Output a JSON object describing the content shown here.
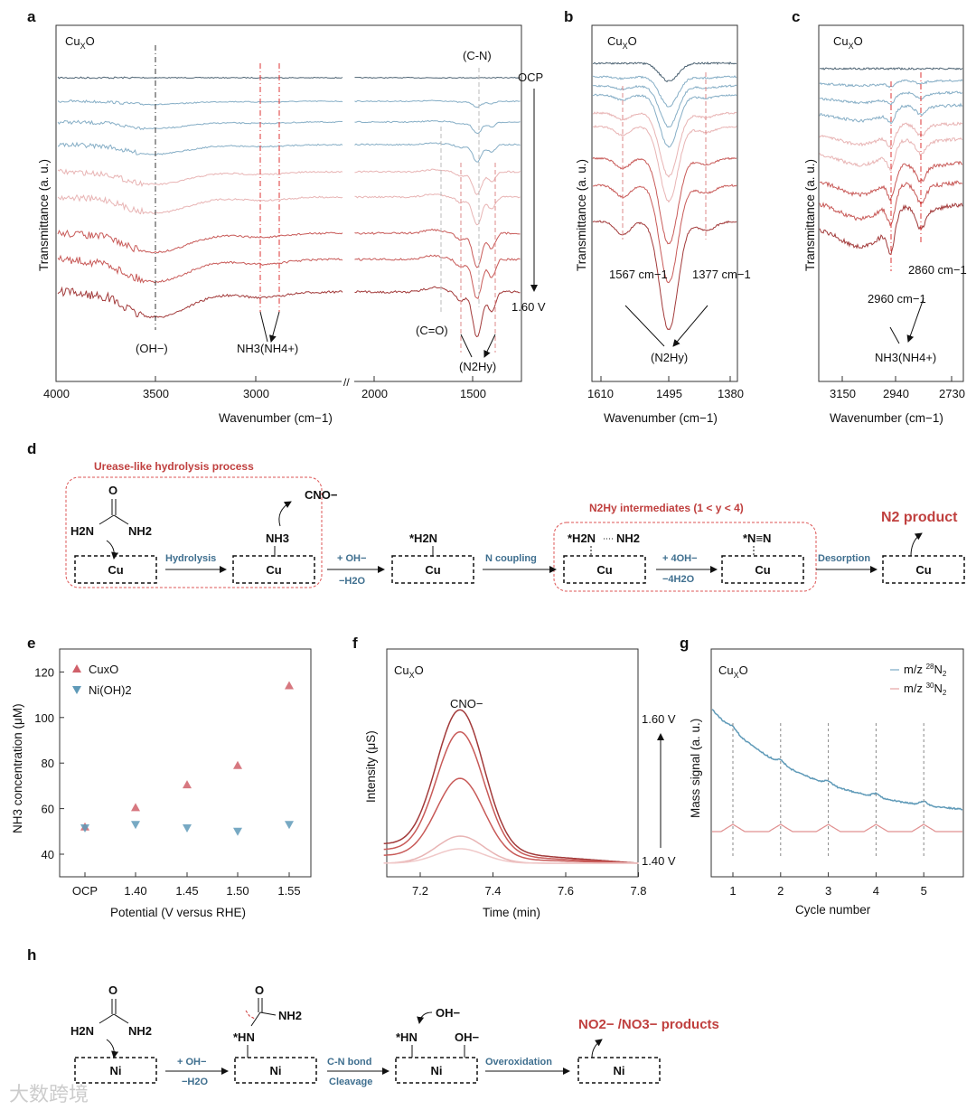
{
  "panel_letters": [
    "a",
    "b",
    "c",
    "d",
    "e",
    "f",
    "g",
    "h"
  ],
  "colors": {
    "ocp": "#4d6373",
    "blue": "#86aec6",
    "pink": "#e8b4b4",
    "red": "#c85a58",
    "darkred": "#a23a3a",
    "accent_red": "#c0403f",
    "arrow_blue": "#3f6f8f",
    "ni_marker": "#5f9ab8",
    "cu_marker": "#d0606a"
  },
  "chart_data": [
    {
      "panel": "a",
      "type": "line",
      "title": "CuxO",
      "xlabel": "Wavenumber (cm−1)",
      "ylabel": "Transmittance (a. u.)",
      "x_ticks": [
        "4000",
        "3500",
        "3000",
        "2000",
        "1500"
      ],
      "xlim": [
        4000,
        1300
      ],
      "axis_break": "2400–2100",
      "series_labels": {
        "top": "OCP",
        "bottom": "1.60 V"
      },
      "series_count": 9,
      "annotations": [
        "(OH−)",
        "NH3(NH4+)",
        "(C=O)",
        "(N2Hy)",
        "(C-N)"
      ]
    },
    {
      "panel": "b",
      "type": "line",
      "title": "CuxO",
      "xlabel": "Wavenumber (cm−1)",
      "ylabel": "Transmittance (a. u.)",
      "x_ticks": [
        "1610",
        "1495",
        "1380"
      ],
      "annotations": [
        "1567 cm−1",
        "1377 cm−1",
        "(N2Hy)"
      ]
    },
    {
      "panel": "c",
      "type": "line",
      "title": "CuxO",
      "xlabel": "Wavenumber (cm−1)",
      "ylabel": "Transmittance (a. u.)",
      "x_ticks": [
        "3150",
        "2940",
        "2730"
      ],
      "annotations": [
        "2960 cm−1",
        "2860 cm−1",
        "NH3(NH4+)"
      ]
    },
    {
      "panel": "e",
      "type": "scatter",
      "xlabel": "Potential (V versus RHE)",
      "ylabel": "NH3 concentration (μM)",
      "categories": [
        "OCP",
        "1.40",
        "1.45",
        "1.50",
        "1.55"
      ],
      "y_ticks": [
        "40",
        "60",
        "80",
        "100",
        "120"
      ],
      "ylim": [
        30,
        130
      ],
      "series": [
        {
          "name": "CuxO",
          "values": [
            52,
            60.5,
            70.5,
            79,
            114
          ]
        },
        {
          "name": "Ni(OH)2",
          "values": [
            51.5,
            53,
            51.5,
            50,
            53
          ]
        }
      ],
      "legend": "top-left"
    },
    {
      "panel": "f",
      "type": "line",
      "title": "CuxO",
      "xlabel": "Time (min)",
      "ylabel": "Intensity (μS)",
      "x_ticks": [
        "7.2",
        "7.4",
        "7.6",
        "7.8"
      ],
      "xlim": [
        7.1,
        7.8
      ],
      "peak_label": "CNO−",
      "peak_time": 7.31,
      "series_labels": {
        "top": "1.60 V",
        "bottom": "1.40 V"
      },
      "relative_peak_heights": [
        1.0,
        0.92,
        0.6,
        0.24,
        0.12
      ]
    },
    {
      "panel": "g",
      "type": "line",
      "title": "CuxO",
      "xlabel": "Cycle number",
      "ylabel": "Mass signal (a. u.)",
      "x_ticks": [
        "1",
        "2",
        "3",
        "4",
        "5"
      ],
      "series": [
        {
          "name": "m/z 28N2"
        },
        {
          "name": "m/z 30N2"
        }
      ],
      "legend": "top-right"
    }
  ],
  "d": {
    "title_box1": "Urease-like hydrolysis process",
    "title_box2": "N2Hy intermediates (1 < y < 4)",
    "product": "N2 product",
    "metal": "Cu",
    "steps": [
      "Hydrolysis",
      "+ OH−",
      "−H2O",
      "N coupling",
      "+ 4OH−",
      "−4H2O",
      "Desorption"
    ],
    "species": [
      "O",
      "H2N",
      "NH2",
      "CNO−",
      "NH3",
      "*H2N",
      "*H2N",
      "NH2",
      "*N≡N"
    ]
  },
  "h": {
    "metal": "Ni",
    "product": "NO2− /NO3− products",
    "steps": [
      "+ OH−",
      "−H2O",
      "C-N bond",
      "Cleavage",
      "Overoxidation"
    ],
    "species": [
      "O",
      "H2N",
      "NH2",
      "O",
      "NH2",
      "*HN",
      "OH−",
      "*HN",
      "OH−"
    ]
  },
  "watermark": "大数跨境"
}
